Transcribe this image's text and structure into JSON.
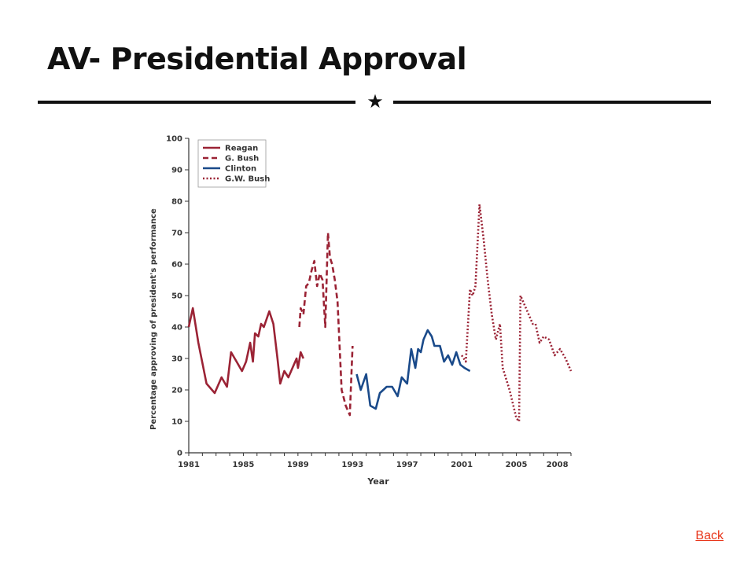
{
  "slide": {
    "title": "AV- Presidential Approval",
    "divider_icon": "star-icon",
    "back_label": "Back"
  },
  "colors": {
    "republican": "#9b2335",
    "democrat": "#1a4a8a",
    "title": "#111111",
    "link": "#e8351a"
  },
  "chart_data": {
    "type": "line",
    "title": "",
    "xlabel": "Year",
    "ylabel": "Percentage approving of president's performance",
    "xlim": [
      1981,
      2009
    ],
    "ylim": [
      0,
      100
    ],
    "x_ticks": [
      1981,
      1985,
      1989,
      1993,
      1997,
      2001,
      2005,
      2008
    ],
    "y_ticks": [
      0,
      10,
      20,
      30,
      40,
      50,
      60,
      70,
      80,
      90,
      100
    ],
    "grid": false,
    "legend_position": "top-left",
    "series": [
      {
        "name": "Reagan",
        "style": "solid",
        "color": "#9b2335",
        "points": [
          [
            1981.0,
            40
          ],
          [
            1981.3,
            46
          ],
          [
            1981.7,
            35
          ],
          [
            1982.3,
            22
          ],
          [
            1982.9,
            19
          ],
          [
            1983.4,
            24
          ],
          [
            1983.8,
            21
          ],
          [
            1984.1,
            32
          ],
          [
            1984.5,
            29
          ],
          [
            1984.9,
            26
          ],
          [
            1985.2,
            29
          ],
          [
            1985.5,
            35
          ],
          [
            1985.7,
            29
          ],
          [
            1985.85,
            38
          ],
          [
            1986.1,
            37
          ],
          [
            1986.3,
            41
          ],
          [
            1986.5,
            40
          ],
          [
            1986.9,
            45
          ],
          [
            1987.2,
            41
          ],
          [
            1987.5,
            30
          ],
          [
            1987.7,
            22
          ],
          [
            1988.0,
            26
          ],
          [
            1988.3,
            24
          ],
          [
            1988.6,
            27
          ],
          [
            1988.9,
            30
          ],
          [
            1989.0,
            27
          ],
          [
            1989.2,
            32
          ],
          [
            1989.4,
            30
          ]
        ]
      },
      {
        "name": "G. Bush",
        "style": "dashed",
        "color": "#9b2335",
        "points": [
          [
            1989.1,
            40
          ],
          [
            1989.2,
            46
          ],
          [
            1989.4,
            44
          ],
          [
            1989.6,
            53
          ],
          [
            1989.8,
            54
          ],
          [
            1990.0,
            58
          ],
          [
            1990.2,
            61
          ],
          [
            1990.4,
            53
          ],
          [
            1990.6,
            57
          ],
          [
            1990.8,
            55
          ],
          [
            1991.0,
            40
          ],
          [
            1991.2,
            70
          ],
          [
            1991.35,
            62
          ],
          [
            1991.5,
            60
          ],
          [
            1991.7,
            55
          ],
          [
            1991.9,
            48
          ],
          [
            1992.2,
            20
          ],
          [
            1992.5,
            15
          ],
          [
            1992.8,
            12
          ],
          [
            1993.0,
            34
          ]
        ]
      },
      {
        "name": "Clinton",
        "style": "solid",
        "color": "#1a4a8a",
        "points": [
          [
            1993.3,
            25
          ],
          [
            1993.6,
            20
          ],
          [
            1994.0,
            25
          ],
          [
            1994.3,
            15
          ],
          [
            1994.7,
            14
          ],
          [
            1995.0,
            19
          ],
          [
            1995.5,
            21
          ],
          [
            1995.9,
            21
          ],
          [
            1996.3,
            18
          ],
          [
            1996.6,
            24
          ],
          [
            1997.0,
            22
          ],
          [
            1997.3,
            33
          ],
          [
            1997.6,
            27
          ],
          [
            1997.8,
            33
          ],
          [
            1998.0,
            32
          ],
          [
            1998.2,
            36
          ],
          [
            1998.5,
            39
          ],
          [
            1998.8,
            37
          ],
          [
            1999.0,
            34
          ],
          [
            1999.4,
            34
          ],
          [
            1999.7,
            29
          ],
          [
            2000.0,
            31
          ],
          [
            2000.3,
            28
          ],
          [
            2000.6,
            32
          ],
          [
            2000.9,
            28
          ],
          [
            2001.2,
            27
          ],
          [
            2001.6,
            26
          ]
        ]
      },
      {
        "name": "G.W. Bush",
        "style": "dotted",
        "color": "#9b2335",
        "points": [
          [
            2001.0,
            31
          ],
          [
            2001.3,
            29
          ],
          [
            2001.6,
            52
          ],
          [
            2001.8,
            50
          ],
          [
            2002.0,
            53
          ],
          [
            2002.3,
            79
          ],
          [
            2002.6,
            68
          ],
          [
            2002.9,
            55
          ],
          [
            2003.2,
            44
          ],
          [
            2003.5,
            36
          ],
          [
            2003.8,
            41
          ],
          [
            2004.0,
            27
          ],
          [
            2004.5,
            20
          ],
          [
            2005.0,
            11
          ],
          [
            2005.2,
            10
          ],
          [
            2005.3,
            50
          ],
          [
            2005.8,
            45
          ],
          [
            2006.2,
            41
          ],
          [
            2006.4,
            41
          ],
          [
            2006.7,
            35
          ],
          [
            2007.0,
            37
          ],
          [
            2007.4,
            36
          ],
          [
            2007.8,
            31
          ],
          [
            2008.2,
            33
          ],
          [
            2008.6,
            30
          ],
          [
            2009.0,
            26
          ]
        ]
      }
    ]
  }
}
